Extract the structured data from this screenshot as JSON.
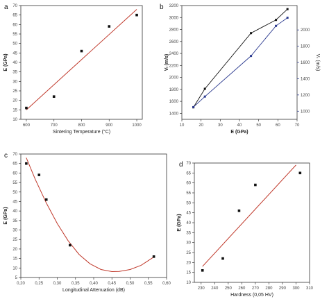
{
  "chart_data": [
    {
      "panel_label": "a",
      "type": "scatter",
      "xlabel": "Sintering Temperature (°C)",
      "ylabel": "E (GPa)",
      "xlim": [
        580,
        1020
      ],
      "ylim": [
        10,
        70
      ],
      "xticks": [
        600,
        700,
        800,
        900,
        1000
      ],
      "yticks": [
        10,
        15,
        20,
        25,
        30,
        35,
        40,
        45,
        50,
        55,
        60,
        65,
        70
      ],
      "grid": false,
      "series": [
        {
          "x": [
            600,
            700,
            800,
            900,
            1000
          ],
          "y": [
            16,
            22,
            46,
            59,
            65
          ],
          "marker": "square",
          "color": "#111111"
        }
      ],
      "fit_line": {
        "x": [
          600,
          1000
        ],
        "y": [
          15,
          68
        ],
        "color": "#c0392b"
      }
    },
    {
      "panel_label": "b",
      "type": "line",
      "xlabel": "E (GPa)",
      "ylabel": "Vₗ (m/s)",
      "y2label": "Vₜ (m/s)",
      "xlim": [
        10,
        70
      ],
      "ylim": [
        1300,
        3200
      ],
      "y2lim": [
        900,
        2300
      ],
      "xticks": [
        10,
        20,
        30,
        40,
        50,
        60,
        70
      ],
      "yticks": [
        1400,
        1600,
        1800,
        2000,
        2200,
        2400,
        2600,
        2800,
        3000,
        3200
      ],
      "y2ticks": [
        1000,
        1200,
        1400,
        1600,
        1800,
        2000
      ],
      "grid": false,
      "series": [
        {
          "axis": "left",
          "x": [
            16,
            22,
            46,
            59,
            65
          ],
          "y": [
            1500,
            1810,
            2740,
            2960,
            3140
          ],
          "color": "#111111",
          "marker": "square"
        },
        {
          "axis": "right",
          "x": [
            16,
            22,
            46,
            59,
            65
          ],
          "y": [
            1050,
            1180,
            1680,
            2050,
            2150
          ],
          "color": "#2b3a8f",
          "marker": "square"
        }
      ]
    },
    {
      "panel_label": "c",
      "type": "scatter",
      "xlabel": "Longitudinal Attenuation (dB)",
      "ylabel": "E (GPa)",
      "xlim": [
        0.2,
        0.6
      ],
      "ylim": [
        5,
        70
      ],
      "xticks": [
        "0,20",
        "0,25",
        "0,30",
        "0,35",
        "0,40",
        "0,45",
        "0,50",
        "0,55",
        "0,60"
      ],
      "xtick_values": [
        0.2,
        0.25,
        0.3,
        0.35,
        0.4,
        0.45,
        0.5,
        0.55,
        0.6
      ],
      "yticks": [
        5,
        10,
        15,
        20,
        25,
        30,
        35,
        40,
        45,
        50,
        55,
        60,
        65,
        70
      ],
      "grid": false,
      "series": [
        {
          "x": [
            0.215,
            0.25,
            0.27,
            0.335,
            0.565
          ],
          "y": [
            65,
            59,
            46,
            22,
            16
          ],
          "marker": "square",
          "color": "#111111"
        }
      ],
      "fit_curve": {
        "x": [
          0.215,
          0.24,
          0.27,
          0.3,
          0.33,
          0.36,
          0.39,
          0.42,
          0.45,
          0.47,
          0.5,
          0.53,
          0.565
        ],
        "y": [
          68,
          56.5,
          44.2,
          33.4,
          24.3,
          17.1,
          12.2,
          9.2,
          8.1,
          8.2,
          9.2,
          11.4,
          15.8
        ],
        "color": "#c0392b"
      }
    },
    {
      "panel_label": "d",
      "type": "scatter",
      "xlabel": "Hardness (0,05 HV)",
      "ylabel": "E (GPa)",
      "xlim": [
        225,
        310
      ],
      "ylim": [
        10,
        70
      ],
      "xticks": [
        230,
        240,
        250,
        260,
        270,
        280,
        290,
        300,
        310
      ],
      "yticks": [
        10,
        15,
        20,
        25,
        30,
        35,
        40,
        45,
        50,
        55,
        60,
        65,
        70
      ],
      "grid": false,
      "series": [
        {
          "x": [
            231,
            246,
            258,
            270,
            303
          ],
          "y": [
            16,
            22,
            46,
            59,
            65
          ],
          "marker": "square",
          "color": "#111111"
        }
      ],
      "fit_line": {
        "x": [
          231,
          300
        ],
        "y": [
          18,
          69
        ],
        "color": "#c0392b"
      }
    }
  ]
}
